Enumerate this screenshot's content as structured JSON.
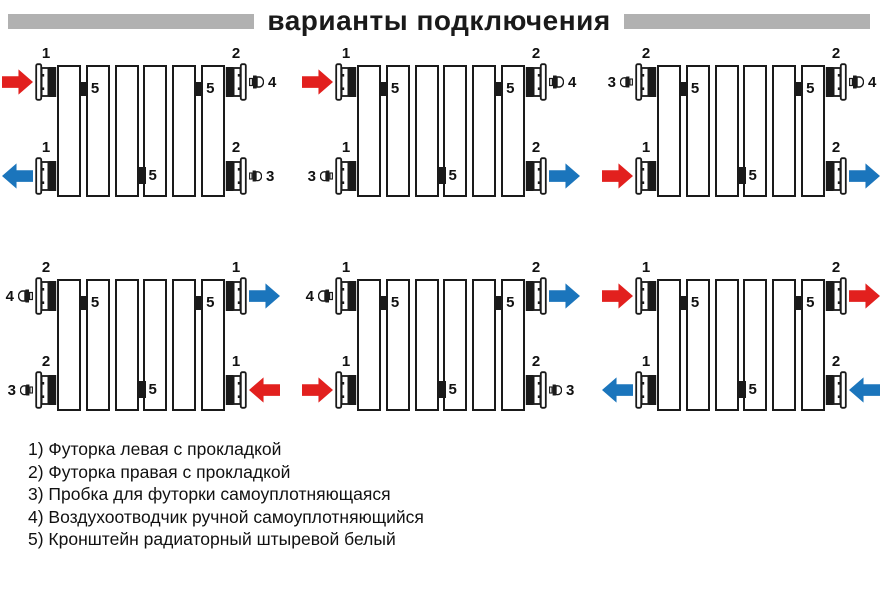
{
  "title": "варианты подключения",
  "colors": {
    "red": "#e2201e",
    "blue": "#1b75bc",
    "gray_bar": "#b1b1b1",
    "line": "#1a1a1a"
  },
  "radiator": {
    "sections": 6,
    "bracket_label": "5",
    "brackets": [
      {
        "row": "top",
        "gap": 1
      },
      {
        "row": "top",
        "gap": 5
      },
      {
        "row": "bottom",
        "gap": 3
      }
    ]
  },
  "diagrams": [
    {
      "name": "variant-1",
      "corners": {
        "top_left": {
          "fitting_label": "1",
          "outer": {
            "kind": "arrow",
            "color": "red",
            "dir": "right"
          }
        },
        "top_right": {
          "fitting_label": "2",
          "outer": {
            "kind": "vent",
            "label": "4"
          }
        },
        "bottom_left": {
          "fitting_label": "1",
          "outer": {
            "kind": "arrow",
            "color": "blue",
            "dir": "left"
          }
        },
        "bottom_right": {
          "fitting_label": "2",
          "outer": {
            "kind": "plug",
            "label": "3"
          }
        }
      }
    },
    {
      "name": "variant-2",
      "corners": {
        "top_left": {
          "fitting_label": "1",
          "outer": {
            "kind": "arrow",
            "color": "red",
            "dir": "right"
          }
        },
        "top_right": {
          "fitting_label": "2",
          "outer": {
            "kind": "vent",
            "label": "4"
          }
        },
        "bottom_left": {
          "fitting_label": "1",
          "outer": {
            "kind": "plug",
            "label": "3"
          }
        },
        "bottom_right": {
          "fitting_label": "2",
          "outer": {
            "kind": "arrow",
            "color": "blue",
            "dir": "right"
          }
        }
      }
    },
    {
      "name": "variant-3",
      "corners": {
        "top_left": {
          "fitting_label": "2",
          "outer": {
            "kind": "plug",
            "label": "3"
          }
        },
        "top_right": {
          "fitting_label": "2",
          "outer": {
            "kind": "vent",
            "label": "4"
          }
        },
        "bottom_left": {
          "fitting_label": "1",
          "outer": {
            "kind": "arrow",
            "color": "red",
            "dir": "right"
          }
        },
        "bottom_right": {
          "fitting_label": "2",
          "outer": {
            "kind": "arrow",
            "color": "blue",
            "dir": "right"
          }
        }
      }
    },
    {
      "name": "variant-4",
      "corners": {
        "top_left": {
          "fitting_label": "2",
          "outer": {
            "kind": "vent",
            "label": "4"
          }
        },
        "top_right": {
          "fitting_label": "1",
          "outer": {
            "kind": "arrow",
            "color": "blue",
            "dir": "right"
          }
        },
        "bottom_left": {
          "fitting_label": "2",
          "outer": {
            "kind": "plug",
            "label": "3"
          }
        },
        "bottom_right": {
          "fitting_label": "1",
          "outer": {
            "kind": "arrow",
            "color": "red",
            "dir": "left"
          }
        }
      }
    },
    {
      "name": "variant-5",
      "corners": {
        "top_left": {
          "fitting_label": "1",
          "outer": {
            "kind": "vent",
            "label": "4"
          }
        },
        "top_right": {
          "fitting_label": "2",
          "outer": {
            "kind": "arrow",
            "color": "blue",
            "dir": "right"
          }
        },
        "bottom_left": {
          "fitting_label": "1",
          "outer": {
            "kind": "arrow",
            "color": "red",
            "dir": "right"
          }
        },
        "bottom_right": {
          "fitting_label": "2",
          "outer": {
            "kind": "plug",
            "label": "3"
          }
        }
      }
    },
    {
      "name": "variant-6",
      "corners": {
        "top_left": {
          "fitting_label": "1",
          "outer": {
            "kind": "arrow",
            "color": "red",
            "dir": "right"
          }
        },
        "top_right": {
          "fitting_label": "2",
          "outer": {
            "kind": "arrow",
            "color": "red",
            "dir": "right"
          }
        },
        "bottom_left": {
          "fitting_label": "1",
          "outer": {
            "kind": "arrow",
            "color": "blue",
            "dir": "left"
          }
        },
        "bottom_right": {
          "fitting_label": "2",
          "outer": {
            "kind": "arrow",
            "color": "blue",
            "dir": "left"
          }
        }
      }
    }
  ],
  "legend": {
    "items": [
      "1) Футорка левая с прокладкой",
      "2) Футорка правая с прокладкой",
      "3) Пробка для футорки самоуплотняющаяся",
      "4) Воздухоотводчик ручной самоуплотняющийся",
      "5) Кронштейн радиаторный штыревой белый"
    ]
  }
}
